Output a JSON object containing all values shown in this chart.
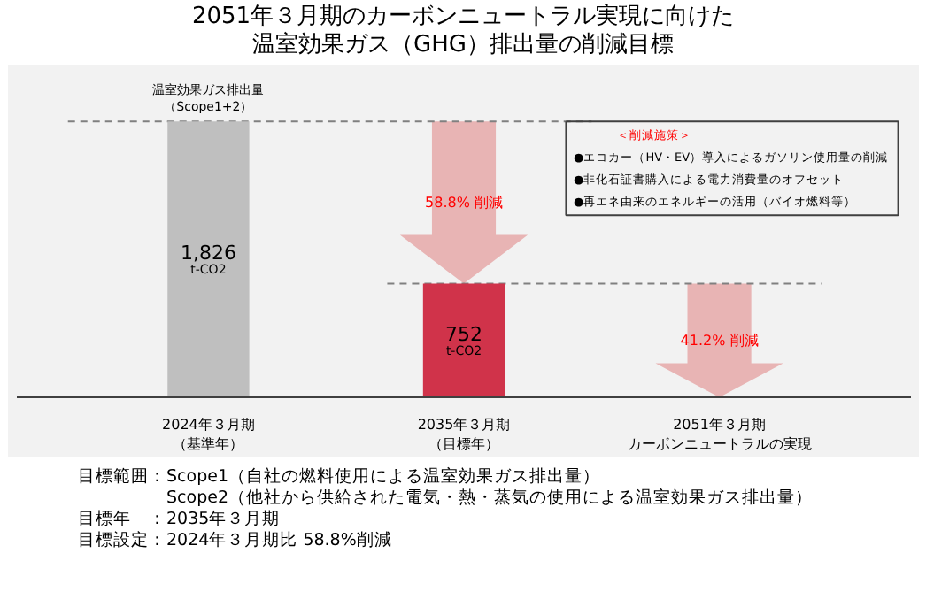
{
  "chart_data": {
    "type": "bar",
    "title": "2051年３月期のカーボンニュートラル実現に向けた温室効果ガス（GHG）排出量の削減目標",
    "ylabel": "温室効果ガス排出量（Scope1+2）",
    "categories": [
      "2024年３月期（基準年）",
      "2035年３月期（目標年）",
      "2051年３月期カーボンニュートラルの実現"
    ],
    "values": [
      1826,
      752,
      null
    ],
    "colors": [
      "#bfbfbf",
      "#d0334a",
      "#d0334a"
    ],
    "value_labels": [
      "1,826\nt-CO2",
      "752\nt-CO2",
      null
    ],
    "ref_lines": [
      {
        "axis": "y",
        "value": 1826,
        "line_style": "dashed",
        "color": "#808080"
      },
      {
        "axis": "y",
        "value": 752,
        "line_style": "dashed",
        "color": "#808080"
      }
    ],
    "annotations": [
      "58.8% 削減",
      "41.2% 削減",
      "＜削減施策＞",
      "●エコカー（HV・EV）導入によるガソリン使用量の削減",
      "●非化石証書購入による電力消費量のオフセット",
      "●再エネ由来のエネルギーの活用（バイオ燃料等）",
      "目標範囲：Scope1（自社の燃料使用による温室効果ガス排出量）",
      "　　　　　Scope2（他社から供給された電気・熱・蒸気の使用による温室効果ガス排出量）",
      "目標年　：2035年３月期",
      "目標設定：2024年３月期比 58.8%削減"
    ],
    "grid": false
  }
}
